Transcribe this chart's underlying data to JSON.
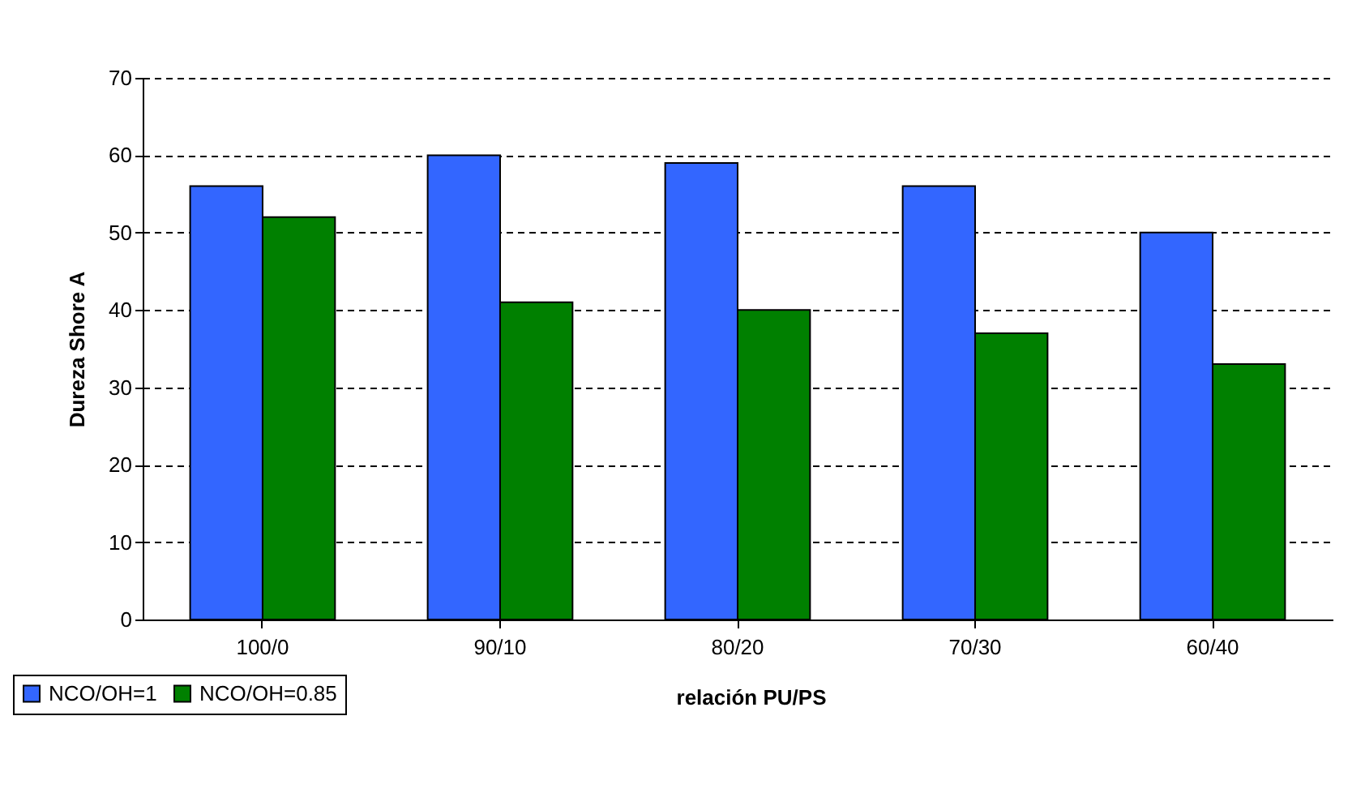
{
  "chart_data": {
    "type": "bar",
    "xlabel": "relación PU/PS",
    "ylabel": "Dureza Shore A",
    "categories": [
      "100/0",
      "90/10",
      "80/20",
      "70/30",
      "60/40"
    ],
    "series": [
      {
        "name": "NCO/OH=1",
        "color": "#3366ff",
        "values": [
          56,
          60,
          59,
          56,
          50
        ]
      },
      {
        "name": "NCO/OH=0.85",
        "color": "#008000",
        "values": [
          52,
          41,
          40,
          37,
          33
        ]
      }
    ],
    "ylim": [
      0,
      70
    ],
    "yticks": [
      0,
      10,
      20,
      30,
      40,
      50,
      60,
      70
    ],
    "grid": "y",
    "legend": "bottom left"
  }
}
